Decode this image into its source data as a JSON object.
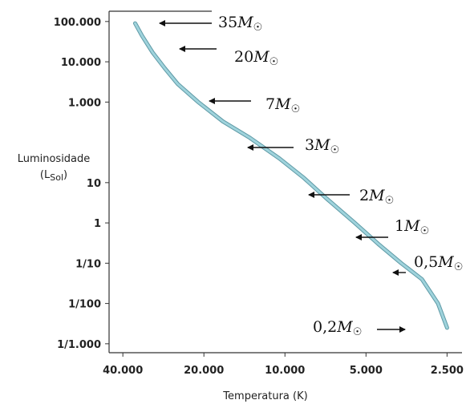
{
  "chart_data": {
    "type": "line",
    "xlabel": "Temperatura (K)",
    "ylabel_line1": "Luminosidade",
    "ylabel_line2": "(L",
    "ylabel_sub": "Sol",
    "ylabel_close": ")",
    "xscale": "log",
    "yscale": "log",
    "x_reversed": true,
    "xlim": [
      45000,
      2200
    ],
    "ylim": [
      0.0006,
      180000
    ],
    "x_ticks": [
      {
        "value": 40000,
        "label": "40.000"
      },
      {
        "value": 20000,
        "label": "20.000"
      },
      {
        "value": 10000,
        "label": "10.000"
      },
      {
        "value": 5000,
        "label": "5.000"
      },
      {
        "value": 2500,
        "label": "2.500"
      }
    ],
    "y_ticks": [
      {
        "value": 100000,
        "label": "100.000"
      },
      {
        "value": 10000,
        "label": "10.000"
      },
      {
        "value": 1000,
        "label": "1.000"
      },
      {
        "value": 10,
        "label": "10"
      },
      {
        "value": 1,
        "label": "1"
      },
      {
        "value": 0.1,
        "label": "1/10"
      },
      {
        "value": 0.01,
        "label": "1/100"
      },
      {
        "value": 0.001,
        "label": "1/1.000"
      }
    ],
    "series": [
      {
        "color": "#9fd3dc",
        "points": [
          [
            36000,
            90000
          ],
          [
            34000,
            45000
          ],
          [
            31000,
            17000
          ],
          [
            28000,
            7000
          ],
          [
            25000,
            2800
          ],
          [
            21000,
            1000
          ],
          [
            17000,
            330
          ],
          [
            13500,
            130
          ],
          [
            10500,
            40
          ],
          [
            8500,
            13
          ],
          [
            7000,
            4
          ],
          [
            5500,
            1
          ],
          [
            4500,
            0.3
          ],
          [
            3700,
            0.1
          ],
          [
            3100,
            0.04
          ],
          [
            2700,
            0.01
          ],
          [
            2500,
            0.0025
          ]
        ]
      }
    ],
    "annotations": [
      {
        "mass": "35",
        "x": 29000,
        "y": 95000
      },
      {
        "mass": "20",
        "x": 24000,
        "y": 22000
      },
      {
        "mass": "7",
        "x": 17500,
        "y": 2200
      },
      {
        "mass": "3",
        "x": 13000,
        "y": 170
      },
      {
        "mass": "2",
        "x": 8000,
        "y": 10
      },
      {
        "mass": "1",
        "x": 5000,
        "y": 0.55
      },
      {
        "mass": "0,5",
        "x": 3000,
        "y": 0.05
      },
      {
        "mass": "0,2",
        "x": 2600,
        "y": 0.0017
      }
    ],
    "mass_symbol": "M",
    "sun_symbol": "☉"
  }
}
